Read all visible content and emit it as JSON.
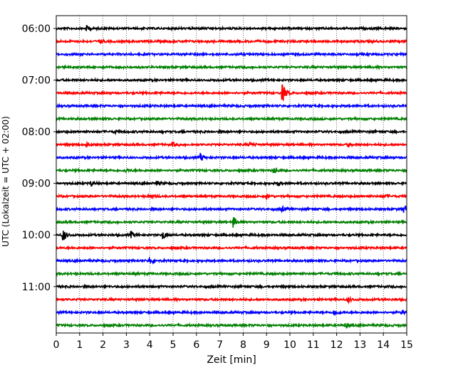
{
  "chart_data": {
    "type": "line",
    "title": "",
    "xlabel": "Zeit  [min]",
    "ylabel": "UTC (Lokalzeit = UTC + 02:00)",
    "xlim": [
      0,
      15
    ],
    "x_ticks": [
      "0",
      "1",
      "2",
      "3",
      "4",
      "5",
      "6",
      "7",
      "8",
      "9",
      "10",
      "11",
      "12",
      "13",
      "14",
      "15"
    ],
    "y_tick_labels": [
      "06:00",
      "07:00",
      "08:00",
      "09:00",
      "10:00",
      "11:00"
    ],
    "grid": "vertical dotted",
    "trace_interval_minutes": 15,
    "trace_count": 24,
    "start_time_utc": "06:00",
    "trace_colors": [
      "#000000",
      "#ff0000",
      "#0000ff",
      "#008000"
    ],
    "series": [
      {
        "start": "06:00",
        "color": "#000000",
        "events": [
          [
            1.3,
            0.45
          ]
        ]
      },
      {
        "start": "06:15",
        "color": "#ff0000",
        "events": [
          [
            1.9,
            0.25
          ]
        ]
      },
      {
        "start": "06:30",
        "color": "#0000ff",
        "events": []
      },
      {
        "start": "06:45",
        "color": "#008000",
        "events": []
      },
      {
        "start": "07:00",
        "color": "#000000",
        "events": []
      },
      {
        "start": "07:15",
        "color": "#ff0000",
        "events": [
          [
            9.7,
            1.3
          ]
        ]
      },
      {
        "start": "07:30",
        "color": "#0000ff",
        "events": []
      },
      {
        "start": "07:45",
        "color": "#008000",
        "events": []
      },
      {
        "start": "08:00",
        "color": "#000000",
        "events": [
          [
            2.5,
            0.2
          ]
        ]
      },
      {
        "start": "08:15",
        "color": "#ff0000",
        "events": [
          [
            1.3,
            0.35
          ],
          [
            5.0,
            0.3
          ],
          [
            8.3,
            0.3
          ],
          [
            12.5,
            0.3
          ]
        ]
      },
      {
        "start": "08:30",
        "color": "#0000ff",
        "events": [
          [
            6.2,
            0.6
          ]
        ]
      },
      {
        "start": "08:45",
        "color": "#008000",
        "events": [
          [
            3.0,
            0.25
          ],
          [
            9.3,
            0.4
          ]
        ]
      },
      {
        "start": "09:00",
        "color": "#000000",
        "events": [
          [
            1.5,
            0.4
          ],
          [
            4.3,
            0.3
          ],
          [
            9.5,
            0.3
          ]
        ]
      },
      {
        "start": "09:15",
        "color": "#ff0000",
        "events": [
          [
            4.0,
            0.3
          ],
          [
            9.0,
            0.3
          ],
          [
            14.0,
            0.25
          ]
        ]
      },
      {
        "start": "09:30",
        "color": "#0000ff",
        "events": [
          [
            9.7,
            0.3
          ],
          [
            14.9,
            0.6
          ]
        ]
      },
      {
        "start": "09:45",
        "color": "#008000",
        "events": [
          [
            7.6,
            0.8
          ]
        ]
      },
      {
        "start": "10:00",
        "color": "#000000",
        "events": [
          [
            0.3,
            1.0
          ],
          [
            3.2,
            0.5
          ],
          [
            4.6,
            0.6
          ]
        ]
      },
      {
        "start": "10:15",
        "color": "#ff0000",
        "events": []
      },
      {
        "start": "10:30",
        "color": "#0000ff",
        "events": [
          [
            4.0,
            0.45
          ]
        ]
      },
      {
        "start": "10:45",
        "color": "#008000",
        "events": []
      },
      {
        "start": "11:00",
        "color": "#000000",
        "events": []
      },
      {
        "start": "11:15",
        "color": "#ff0000",
        "events": [
          [
            12.5,
            0.4
          ]
        ]
      },
      {
        "start": "11:30",
        "color": "#0000ff",
        "events": [
          [
            11.9,
            0.45
          ],
          [
            14.8,
            0.3
          ]
        ]
      },
      {
        "start": "11:45",
        "color": "#008000",
        "events": [
          [
            12.4,
            0.3
          ]
        ]
      }
    ]
  }
}
